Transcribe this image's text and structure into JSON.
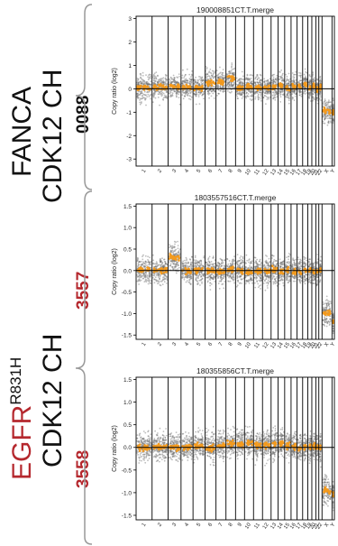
{
  "labels": {
    "group1_line1": "FANCA",
    "group1_line2": "CDK12 CH",
    "group2_line1_main": "EGFR",
    "group2_line1_sup": "R831H",
    "group2_line2": "CDK12 CH",
    "sample1": "0088",
    "sample2": "3557",
    "sample3": "3558"
  },
  "colors": {
    "sample_red": "#b5282e",
    "points_gray": "#6e6e6e",
    "segment_orange": "#f39a1e",
    "zero_line": "#000000"
  },
  "chart_data": [
    {
      "type": "scatter",
      "title": "190008851CT.T.merge",
      "ylabel": "Copy ratio (log2)",
      "ylim": [
        -3.3,
        3.1
      ],
      "yticks": [
        -3,
        -2,
        -1,
        0,
        1,
        2,
        3
      ],
      "categories": [
        "1",
        "2",
        "3",
        "4",
        "5",
        "6",
        "7",
        "8",
        "9",
        "10",
        "11",
        "12",
        "13",
        "14",
        "15",
        "16",
        "17",
        "18",
        "19",
        "20",
        "21",
        "22",
        "X",
        "Y"
      ],
      "segments": [
        0.05,
        0.08,
        0.12,
        0.1,
        0.06,
        0.25,
        0.3,
        0.45,
        0.02,
        0.1,
        0.08,
        0.05,
        0.1,
        0.15,
        0.02,
        0.08,
        0.12,
        0.2,
        0.05,
        0.1,
        0.0,
        0.05,
        -0.95,
        -1.0
      ]
    },
    {
      "type": "scatter",
      "title": "1803557516CT.T.merge",
      "ylabel": "Copy ratio (log2)",
      "ylim": [
        -1.6,
        1.55
      ],
      "yticks": [
        -1.5,
        -1.0,
        -0.5,
        0.0,
        0.5,
        1.0,
        1.5
      ],
      "categories": [
        "1",
        "2",
        "3",
        "4",
        "5",
        "6",
        "7",
        "8",
        "9",
        "10",
        "11",
        "12",
        "13",
        "14",
        "15",
        "16",
        "17",
        "18",
        "19",
        "20",
        "21",
        "22",
        "X",
        "Y"
      ],
      "segments": [
        0.02,
        0.0,
        0.3,
        -0.02,
        0.01,
        0.0,
        -0.03,
        0.02,
        0.0,
        -0.04,
        0.0,
        -0.02,
        0.01,
        -0.03,
        0.0,
        -0.02,
        -0.05,
        0.0,
        -0.02,
        -0.04,
        -0.03,
        0.0,
        -1.0,
        -1.2
      ]
    },
    {
      "type": "scatter",
      "title": "180355856CT.T.merge",
      "ylabel": "Copy ratio (log2)",
      "ylim": [
        -1.6,
        1.55
      ],
      "yticks": [
        -1.5,
        -1.0,
        -0.5,
        0.0,
        0.5,
        1.0,
        1.5
      ],
      "categories": [
        "1",
        "2",
        "3",
        "4",
        "5",
        "6",
        "7",
        "8",
        "9",
        "10",
        "11",
        "12",
        "13",
        "14",
        "15",
        "16",
        "17",
        "18",
        "19",
        "20",
        "21",
        "22",
        "X",
        "Y"
      ],
      "segments": [
        0.0,
        0.02,
        0.0,
        0.0,
        0.03,
        0.0,
        0.05,
        0.08,
        0.07,
        0.1,
        0.05,
        0.05,
        0.08,
        0.1,
        0.05,
        0.02,
        0.0,
        0.0,
        0.02,
        0.01,
        0.0,
        0.0,
        -0.95,
        -1.05
      ]
    }
  ]
}
